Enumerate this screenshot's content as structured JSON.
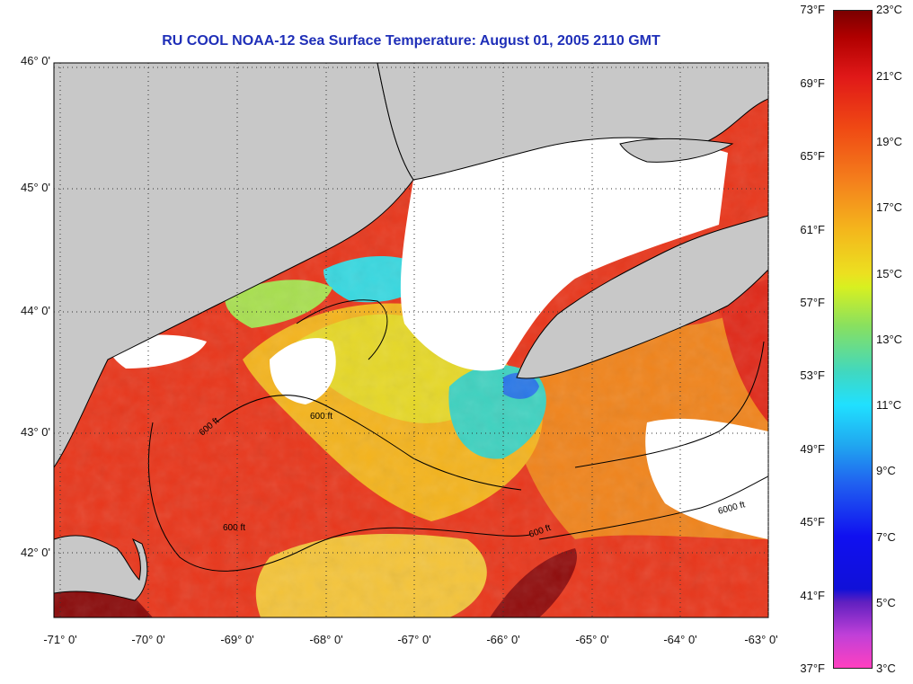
{
  "title": "RU COOL  NOAA-12  Sea Surface Temperature:  August 01, 2005 2110 GMT",
  "lat_labels": [
    "46° 0'",
    "45° 0'",
    "44° 0'",
    "43° 0'",
    "42° 0'"
  ],
  "lon_labels": [
    "-71° 0'",
    "-70° 0'",
    "-69° 0'",
    "-68° 0'",
    "-67° 0'",
    "-66° 0'",
    "-65° 0'",
    "-64° 0'",
    "-63° 0'"
  ],
  "fahrenheit_labels": [
    "73°F",
    "69°F",
    "65°F",
    "61°F",
    "57°F",
    "53°F",
    "49°F",
    "45°F",
    "41°F",
    "37°F"
  ],
  "celsius_labels": [
    "23°C",
    "21°C",
    "19°C",
    "17°C",
    "15°C",
    "13°C",
    "11°C",
    "9°C",
    "7°C",
    "5°C",
    "3°C"
  ],
  "contour_labels": [
    "600 ft",
    "6000 ft"
  ],
  "colors": {
    "land": "#c8c8c8",
    "cloud": "#ffffff",
    "title": "#1f2fb8",
    "warm_red": "#e4261a",
    "orange": "#f07a1a",
    "yellow": "#e8e428",
    "cyan": "#20d8e8",
    "dark_red": "#8a0a0a"
  }
}
